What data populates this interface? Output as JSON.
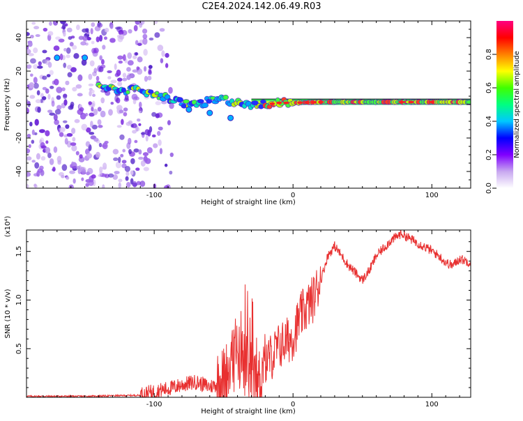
{
  "page": {
    "title": "C2E4.2024.142.06.49.R03"
  },
  "chart_data": [
    {
      "type": "heatmap",
      "name": "spectrogram",
      "xlabel": "Height of straight line (km)",
      "ylabel": "Frequency (Hz)",
      "xlim": [
        -192,
        128
      ],
      "ylim": [
        -50,
        50
      ],
      "x_ticks": [
        -100,
        0,
        100
      ],
      "y_ticks": [
        -40,
        -20,
        0,
        20,
        40
      ],
      "noise_region_x": [
        -192,
        -105
      ],
      "signal_track": {
        "x": [
          -140,
          -125,
          -110,
          -100,
          -90,
          -80,
          -70,
          -60,
          -50,
          -40,
          -30,
          -20,
          -10,
          0,
          20,
          60,
          80,
          100,
          128
        ],
        "freq": [
          10,
          9,
          8,
          7,
          3,
          1,
          0,
          2,
          3,
          1,
          0,
          0,
          1,
          1,
          1.5,
          1.5,
          1.5,
          1.5,
          1.5
        ]
      },
      "colorbar": {
        "label": "Normalized spectral amplitude",
        "range": [
          0,
          1
        ],
        "ticks": [
          "0.0",
          "0.2",
          "0.4",
          "0.6",
          "0.8"
        ],
        "colors": [
          "#ffffff",
          "#c8a8f0",
          "#8000ff",
          "#0000ff",
          "#00c8ff",
          "#00ff80",
          "#40ff00",
          "#ffff00",
          "#ff8000",
          "#ff0000",
          "#ff0080"
        ]
      }
    },
    {
      "type": "line",
      "name": "snr",
      "xlabel": "Height of straight line (km)",
      "ylabel": "SNR (10 * v/v)",
      "scale_label": "(x10⁴)",
      "xlim": [
        -192,
        128
      ],
      "ylim": [
        0,
        1.72
      ],
      "x_ticks": [
        -100,
        0,
        100
      ],
      "y_ticks": [
        "0.5",
        "1.0",
        "1.5"
      ],
      "y_tick_values": [
        0.5,
        1.0,
        1.5
      ],
      "color": "#e83030",
      "series": [
        {
          "name": "SNR",
          "x": [
            -192,
            -150,
            -110,
            -100,
            -90,
            -80,
            -70,
            -60,
            -50,
            -45,
            -40,
            -35,
            -30,
            -25,
            -20,
            -15,
            -10,
            -5,
            0,
            5,
            10,
            15,
            20,
            25,
            30,
            40,
            50,
            55,
            60,
            70,
            78,
            85,
            90,
            100,
            105,
            110,
            115,
            120,
            128
          ],
          "y": [
            0.01,
            0.01,
            0.02,
            0.05,
            0.08,
            0.12,
            0.15,
            0.1,
            0.15,
            0.3,
            0.4,
            0.3,
            0.2,
            0.12,
            0.35,
            0.4,
            0.5,
            0.55,
            0.6,
            0.8,
            0.9,
            1.0,
            1.2,
            1.45,
            1.55,
            1.35,
            1.2,
            1.3,
            1.45,
            1.6,
            1.68,
            1.62,
            1.58,
            1.5,
            1.45,
            1.38,
            1.35,
            1.42,
            1.38
          ]
        }
      ]
    }
  ]
}
